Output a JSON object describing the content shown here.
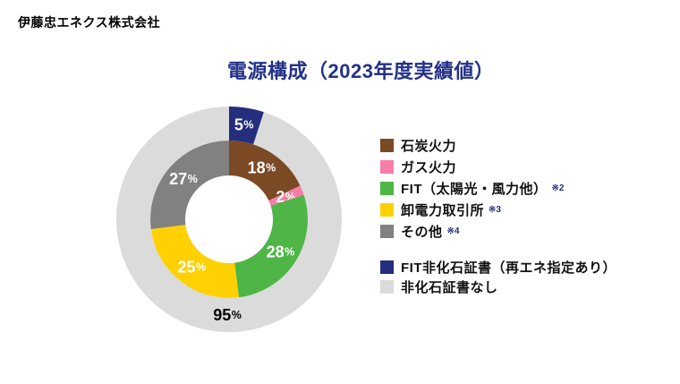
{
  "page": {
    "company": "伊藤忠エネクス株式会社",
    "title": "電源構成（2023年度実績値）"
  },
  "colors": {
    "title_navy": "#233189",
    "navy": "#242e7c",
    "brown": "#7b4a24",
    "pink": "#f87ca8",
    "green": "#4eb546",
    "yellow": "#ffd103",
    "gray": "#818181",
    "light_gray": "#dbdbdb",
    "background": "#ffffff"
  },
  "chart_data": {
    "type": "pie",
    "subtype": "double-ring-donut",
    "title": "電源構成（2023年度実績値）",
    "units": "%",
    "start_angle_deg": 0,
    "direction": "clockwise",
    "rings": [
      {
        "name": "inner",
        "slices": [
          {
            "label": "石炭火力",
            "value": 18,
            "pct_text": "18",
            "color": "#7b4a24",
            "label_color": "#ffffff"
          },
          {
            "label": "ガス火力",
            "value": 2,
            "pct_text": "2",
            "color": "#f87ca8",
            "label_color": "#ffffff"
          },
          {
            "label": "FIT（太陽光・風力他）",
            "value": 28,
            "pct_text": "28",
            "color": "#4eb546",
            "label_color": "#ffffff"
          },
          {
            "label": "卸電力取引所",
            "value": 25,
            "pct_text": "25",
            "color": "#ffd103",
            "label_color": "#ffffff"
          },
          {
            "label": "その他",
            "value": 27,
            "pct_text": "27",
            "color": "#818181",
            "label_color": "#ffffff"
          }
        ]
      },
      {
        "name": "outer",
        "slices": [
          {
            "label": "FIT非化石証書（再エネ指定あり）",
            "value": 5,
            "pct_text": "5",
            "color": "#242e7c",
            "label_color": "#ffffff"
          },
          {
            "label": "非化石証書なし",
            "value": 95,
            "pct_text": "95",
            "color": "#dbdbdb",
            "label_color": "#000000",
            "label_angle_deg": 181
          }
        ]
      }
    ]
  },
  "legend": {
    "groups": [
      {
        "items": [
          {
            "label": "石炭火力",
            "color": "#7b4a24",
            "note": ""
          },
          {
            "label": "ガス火力",
            "color": "#f87ca8",
            "note": ""
          },
          {
            "label": "FIT（太陽光・風力他）",
            "color": "#4eb546",
            "note": "※2"
          },
          {
            "label": "卸電力取引所",
            "color": "#ffd103",
            "note": "※3"
          },
          {
            "label": "その他",
            "color": "#818181",
            "note": "※4"
          }
        ]
      },
      {
        "items": [
          {
            "label": "FIT非化石証書（再エネ指定あり）",
            "color": "#242e7c",
            "note": ""
          },
          {
            "label": "非化石証書なし",
            "color": "#dbdbdb",
            "note": ""
          }
        ]
      }
    ]
  }
}
